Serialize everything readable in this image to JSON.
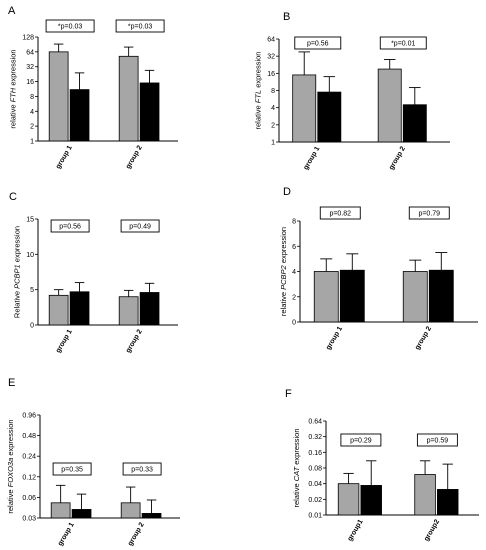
{
  "chart_data": [
    {
      "type": "bar",
      "panel": "A",
      "ylabel_pre": "relative ",
      "ylabel_gene": "FTH",
      "ylabel_post": " expression",
      "yscale": "log2",
      "ylim": [
        1,
        128
      ],
      "yticks": [
        1,
        2,
        4,
        8,
        16,
        32,
        64,
        128
      ],
      "ytick_labels": [
        "1",
        "2",
        "4",
        "8",
        "16",
        "32",
        "64",
        "128"
      ],
      "categories": [
        "group 1",
        "group 2"
      ],
      "series": [
        {
          "color": "#a6a6a6",
          "values": [
            64,
            52
          ],
          "errors": [
            92,
            80
          ]
        },
        {
          "color": "#000000",
          "values": [
            11,
            15
          ],
          "errors": [
            24,
            27
          ]
        }
      ],
      "annotations": [
        "*p=0.03",
        "*p=0.03"
      ],
      "grid": false
    },
    {
      "type": "bar",
      "panel": "B",
      "ylabel_pre": "relative ",
      "ylabel_gene": "FTL",
      "ylabel_post": " expression",
      "yscale": "log2",
      "ylim": [
        1,
        64
      ],
      "yticks": [
        1,
        2,
        4,
        8,
        16,
        32,
        64
      ],
      "ytick_labels": [
        "1",
        "2",
        "4",
        "8",
        "16",
        "32",
        "64"
      ],
      "categories": [
        "group 1",
        "group 2"
      ],
      "series": [
        {
          "color": "#a6a6a6",
          "values": [
            15,
            19
          ],
          "errors": [
            38,
            28
          ]
        },
        {
          "color": "#000000",
          "values": [
            7.5,
            4.5
          ],
          "errors": [
            14,
            9
          ]
        }
      ],
      "annotations": [
        "p=0.56",
        "*p=0.01"
      ],
      "grid": false
    },
    {
      "type": "bar",
      "panel": "C",
      "ylabel_pre": "Relative ",
      "ylabel_gene": "PCBP1",
      "ylabel_post": " expression",
      "yscale": "linear",
      "ylim": [
        0,
        15
      ],
      "yticks": [
        0,
        5,
        10,
        15
      ],
      "ytick_labels": [
        "0",
        "5",
        "10",
        "15"
      ],
      "categories": [
        "group 1",
        "group 2"
      ],
      "series": [
        {
          "color": "#a6a6a6",
          "values": [
            4.2,
            4.0
          ],
          "errors": [
            5.0,
            4.9
          ]
        },
        {
          "color": "#000000",
          "values": [
            4.7,
            4.6
          ],
          "errors": [
            6.0,
            5.9
          ]
        }
      ],
      "annotations": [
        "p=0.56",
        "p=0.49"
      ],
      "grid": false
    },
    {
      "type": "bar",
      "panel": "D",
      "ylabel_pre": "relative ",
      "ylabel_gene": "PCBP2",
      "ylabel_post": " expression",
      "yscale": "linear",
      "ylim": [
        0,
        8
      ],
      "yticks": [
        0,
        2,
        4,
        6,
        8
      ],
      "ytick_labels": [
        "0",
        "2",
        "4",
        "6",
        "8"
      ],
      "categories": [
        "group 1",
        "group 2"
      ],
      "series": [
        {
          "color": "#a6a6a6",
          "values": [
            4.0,
            4.0
          ],
          "errors": [
            5.0,
            4.9
          ]
        },
        {
          "color": "#000000",
          "values": [
            4.1,
            4.1
          ],
          "errors": [
            5.4,
            5.5
          ]
        }
      ],
      "annotations": [
        "p=0.82",
        "p=0.79"
      ],
      "grid": false
    },
    {
      "type": "bar",
      "panel": "E",
      "ylabel_pre": "relative ",
      "ylabel_gene": "FOXO3a",
      "ylabel_post": " expression",
      "yscale": "log2",
      "ylim": [
        0.03,
        0.96
      ],
      "yticks": [
        0.03,
        0.06,
        0.12,
        0.24,
        0.48,
        0.96
      ],
      "ytick_labels": [
        "0.03",
        "0.06",
        "0.12",
        "0.24",
        "0.48",
        "0.96"
      ],
      "categories": [
        "group 1",
        "group 2"
      ],
      "series": [
        {
          "color": "#a6a6a6",
          "values": [
            0.05,
            0.05
          ],
          "errors": [
            0.09,
            0.085
          ]
        },
        {
          "color": "#000000",
          "values": [
            0.04,
            0.035
          ],
          "errors": [
            0.067,
            0.055
          ]
        }
      ],
      "annotations": [
        "p=0.35",
        "p=0.33"
      ],
      "grid": false
    },
    {
      "type": "bar",
      "panel": "F",
      "ylabel_pre": "relative ",
      "ylabel_gene": "CAT",
      "ylabel_post": " expression",
      "yscale": "log2",
      "ylim": [
        0.01,
        0.64
      ],
      "yticks": [
        0.01,
        0.02,
        0.04,
        0.08,
        0.16,
        0.32,
        0.64
      ],
      "ytick_labels": [
        "0.01",
        "0.02",
        "0.04",
        "0.08",
        "0.16",
        "0.32",
        "0.64"
      ],
      "categories": [
        "group1",
        "group2"
      ],
      "series": [
        {
          "color": "#a6a6a6",
          "values": [
            0.04,
            0.06
          ],
          "errors": [
            0.063,
            0.11
          ]
        },
        {
          "color": "#000000",
          "values": [
            0.037,
            0.031
          ],
          "errors": [
            0.11,
            0.095
          ]
        }
      ],
      "annotations": [
        "p=0.29",
        "p=0.59"
      ],
      "grid": false
    }
  ]
}
